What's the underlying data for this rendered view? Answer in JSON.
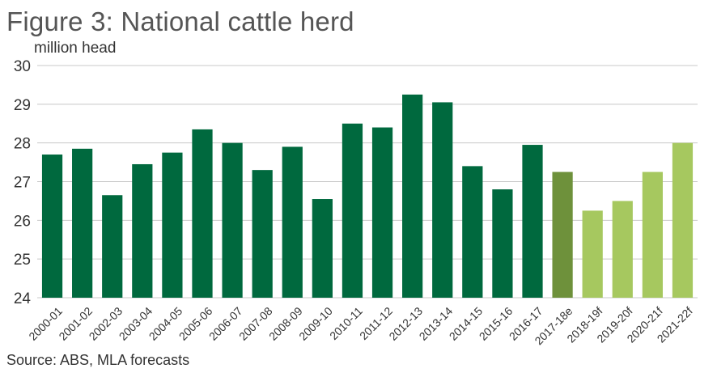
{
  "chart_data": {
    "type": "bar",
    "title": "Figure 3: National cattle herd",
    "ylabel": "million head",
    "xlabel": "",
    "source": "Source: ABS, MLA forecasts",
    "ylim": [
      24,
      30
    ],
    "yticks": [
      24,
      25,
      26,
      27,
      28,
      29,
      30
    ],
    "grid": true,
    "categories": [
      "2000-01",
      "2001-02",
      "2002-03",
      "2003-04",
      "2004-05",
      "2005-06",
      "2006-07",
      "2007-08",
      "2008-09",
      "2009-10",
      "2010-11",
      "2011-12",
      "2012-13",
      "2013-14",
      "2014-15",
      "2015-16",
      "2016-17",
      "2017-18e",
      "2018-19f",
      "2019-20f",
      "2020-21f",
      "2021-22f"
    ],
    "values": [
      27.7,
      27.85,
      26.65,
      27.45,
      27.75,
      28.35,
      28.0,
      27.3,
      27.9,
      26.55,
      28.5,
      28.4,
      29.25,
      29.05,
      27.4,
      26.8,
      27.95,
      27.25,
      26.25,
      26.5,
      27.25,
      28.0
    ],
    "colors": {
      "actual": "#00693e",
      "estimate": "#6e913b",
      "forecast": "#a6c85f",
      "grid": "#c8c8c8"
    },
    "bar_kinds": [
      "actual",
      "actual",
      "actual",
      "actual",
      "actual",
      "actual",
      "actual",
      "actual",
      "actual",
      "actual",
      "actual",
      "actual",
      "actual",
      "actual",
      "actual",
      "actual",
      "actual",
      "estimate",
      "forecast",
      "forecast",
      "forecast",
      "forecast"
    ]
  }
}
